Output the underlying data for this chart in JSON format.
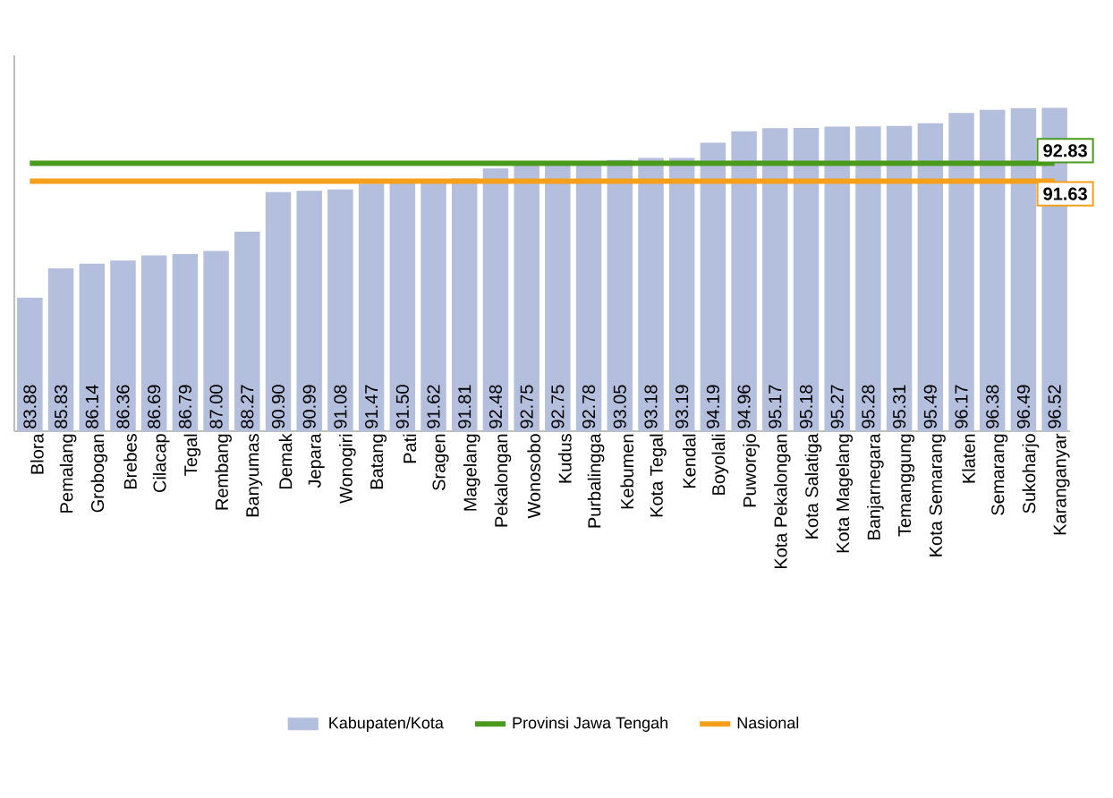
{
  "chart_data": {
    "type": "bar",
    "categories": [
      "Blora",
      "Pemalang",
      "Grobogan",
      "Brebes",
      "Cilacap",
      "Tegal",
      "Rembang",
      "Banyumas",
      "Demak",
      "Jepara",
      "Wonogiri",
      "Batang",
      "Pati",
      "Sragen",
      "Magelang",
      "Pekalongan",
      "Wonosobo",
      "Kudus",
      "Purbalingga",
      "Kebumen",
      "Kota Tegal",
      "Kendal",
      "Boyolali",
      "Puworejo",
      "Kota Pekalongan",
      "Kota Salatiga",
      "Kota Magelang",
      "Banjarnegara",
      "Temanggung",
      "Kota Semarang",
      "Klaten",
      "Semarang",
      "Sukoharjo",
      "Karanganyar"
    ],
    "series": [
      {
        "name": "Kabupaten/Kota",
        "color": "#b4bedd",
        "values": [
          83.88,
          85.83,
          86.14,
          86.36,
          86.69,
          86.79,
          87.0,
          88.27,
          90.9,
          90.99,
          91.08,
          91.47,
          91.5,
          91.62,
          91.81,
          92.48,
          92.75,
          92.75,
          92.78,
          93.05,
          93.18,
          93.19,
          94.19,
          94.96,
          95.17,
          95.18,
          95.27,
          95.28,
          95.31,
          95.49,
          96.17,
          96.38,
          96.49,
          96.52
        ],
        "value_labels": [
          "83.88",
          "85.83",
          "86.14",
          "86.36",
          "86.69",
          "86.79",
          "87.00",
          "88.27",
          "90.90",
          "90.99",
          "91.08",
          "91.47",
          "91.50",
          "91.62",
          "91.81",
          "92.48",
          "92.75",
          "92.75",
          "92.78",
          "93.05",
          "93.18",
          "93.19",
          "94.19",
          "94.96",
          "95.17",
          "95.18",
          "95.27",
          "95.28",
          "95.31",
          "95.49",
          "96.17",
          "96.38",
          "96.49",
          "96.52"
        ]
      },
      {
        "name": "Provinsi Jawa Tengah",
        "type": "line",
        "color": "#4a9a1e",
        "values": [
          92.83,
          92.83,
          92.83,
          92.83,
          92.83,
          92.83,
          92.83,
          92.83,
          92.83,
          92.83,
          92.83,
          92.83,
          92.83,
          92.83,
          92.83,
          92.83,
          92.83,
          92.83,
          92.83,
          92.83,
          92.83,
          92.83,
          92.83,
          92.83,
          92.83,
          92.83,
          92.83,
          92.83,
          92.83,
          92.83,
          92.83,
          92.83,
          92.83,
          92.83
        ],
        "value_labels": [
          null,
          null,
          null,
          null,
          null,
          null,
          null,
          null,
          null,
          null,
          null,
          null,
          null,
          null,
          null,
          null,
          null,
          null,
          null,
          null,
          null,
          null,
          null,
          null,
          null,
          null,
          null,
          null,
          null,
          null,
          null,
          null,
          null,
          "92.83"
        ]
      },
      {
        "name": "Nasional",
        "type": "line",
        "color": "#f5a01a",
        "values": [
          91.63,
          91.63,
          91.63,
          91.63,
          91.63,
          91.63,
          91.63,
          91.63,
          91.63,
          91.63,
          91.63,
          91.63,
          91.63,
          91.63,
          91.63,
          91.63,
          91.63,
          91.63,
          91.63,
          91.63,
          91.63,
          91.63,
          91.63,
          91.63,
          91.63,
          91.63,
          91.63,
          91.63,
          91.63,
          91.63,
          91.63,
          91.63,
          91.63,
          91.63
        ],
        "value_labels": [
          null,
          null,
          null,
          null,
          null,
          null,
          null,
          null,
          null,
          null,
          null,
          null,
          null,
          null,
          null,
          null,
          null,
          null,
          null,
          null,
          null,
          null,
          null,
          null,
          null,
          null,
          null,
          null,
          null,
          null,
          null,
          null,
          null,
          "91.63"
        ]
      }
    ],
    "ylim": [
      75,
      100
    ],
    "legend": "bottom",
    "grid": false,
    "tick_labels": "x"
  }
}
